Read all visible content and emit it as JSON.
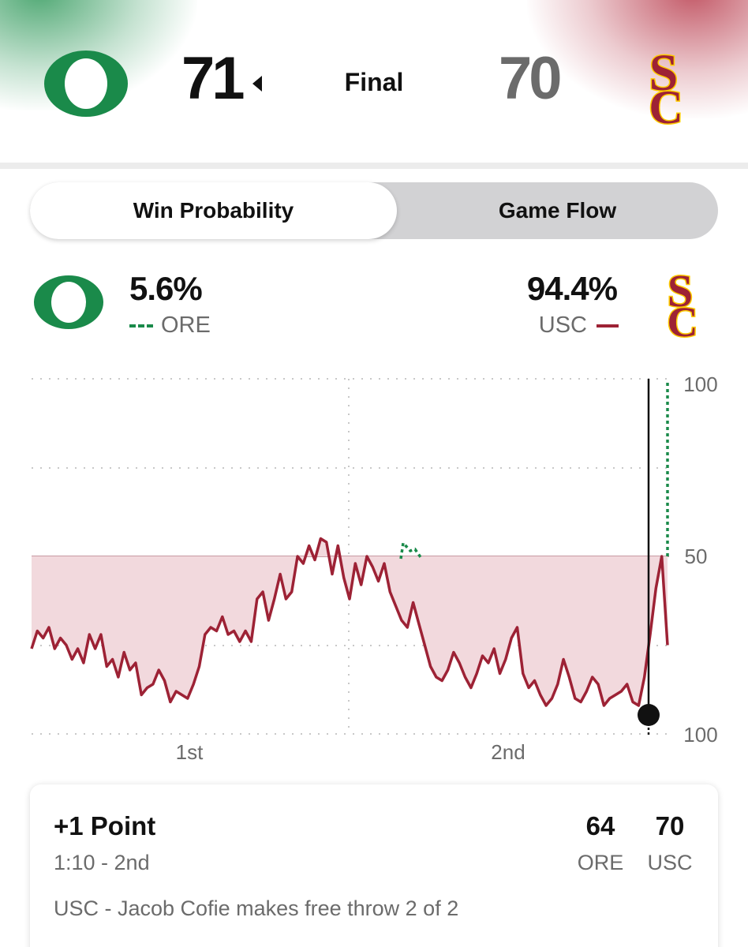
{
  "scoreboard": {
    "home_team": "ORE",
    "away_team": "USC",
    "home_score": "71",
    "away_score": "70",
    "status": "Final",
    "winner_indicator_icon": "caret-left-icon"
  },
  "tabs": {
    "active": "Win Probability",
    "inactive": "Game Flow"
  },
  "probability": {
    "home_pct": "5.6%",
    "away_pct": "94.4%",
    "home_label": "ORE",
    "away_label": "USC"
  },
  "colors": {
    "oregon_green": "#1a8a4a",
    "usc_cardinal": "#9d2235",
    "usc_gold": "#ffcc00",
    "fill": "#f2d9dd"
  },
  "chart_data": {
    "type": "line",
    "title": "Win Probability",
    "x_labels": [
      "1st",
      "2nd"
    ],
    "y_tick_labels": [
      "100",
      "50",
      "100"
    ],
    "ylim": [
      0,
      100
    ],
    "series": [
      {
        "name": "USC",
        "style": "solid",
        "x": [
          0,
          1,
          2,
          3,
          4,
          5,
          6,
          7,
          8,
          9,
          10,
          11,
          12,
          13,
          14,
          15,
          16,
          17,
          18,
          19,
          20,
          21,
          22,
          23,
          24,
          25,
          26,
          27,
          28,
          29,
          30,
          31,
          32,
          33,
          34,
          35,
          36,
          37,
          38,
          39,
          40,
          41,
          42,
          43,
          44,
          45,
          46,
          47,
          48,
          49,
          50,
          51,
          52,
          53,
          54,
          55,
          56,
          57,
          58,
          59,
          60,
          61,
          62,
          63,
          64,
          65,
          66,
          67,
          68,
          69,
          70,
          71,
          72,
          73,
          74,
          75,
          76,
          77,
          78,
          79,
          80,
          81,
          82,
          83,
          84,
          85,
          86,
          87,
          88,
          89,
          90,
          91,
          92,
          93,
          94,
          95,
          96,
          97,
          98,
          99,
          100,
          101,
          102,
          103,
          104,
          105,
          106,
          107,
          108,
          109,
          110
        ],
        "values": [
          24,
          29,
          27,
          30,
          24,
          27,
          25,
          21,
          24,
          20,
          28,
          24,
          28,
          19,
          21,
          16,
          23,
          18,
          20,
          11,
          13,
          14,
          18,
          15,
          9,
          12,
          11,
          10,
          14,
          19,
          28,
          30,
          29,
          33,
          28,
          29,
          26,
          29,
          26,
          38,
          40,
          32,
          38,
          45,
          38,
          40,
          50,
          48,
          53,
          49,
          55,
          54,
          45,
          53,
          44,
          38,
          48,
          42,
          50,
          47,
          43,
          48,
          40,
          36,
          32,
          30,
          37,
          31,
          25,
          19,
          16,
          15,
          18,
          23,
          20,
          16,
          13,
          17,
          22,
          20,
          24,
          17,
          21,
          27,
          30,
          17,
          13,
          15,
          11,
          8,
          10,
          14,
          21,
          16,
          10,
          9,
          12,
          16,
          14,
          8,
          10,
          11,
          12,
          14,
          9,
          8,
          16,
          28,
          41,
          50,
          25
        ],
        "color": "#9d2235"
      }
    ]
  },
  "play": {
    "title": "+1 Point",
    "time": "1:10 - 2nd",
    "description": "USC - Jacob Cofie makes free throw 2 of 2",
    "home_score": "64",
    "away_score": "70",
    "home_team": "ORE",
    "away_team": "USC"
  }
}
